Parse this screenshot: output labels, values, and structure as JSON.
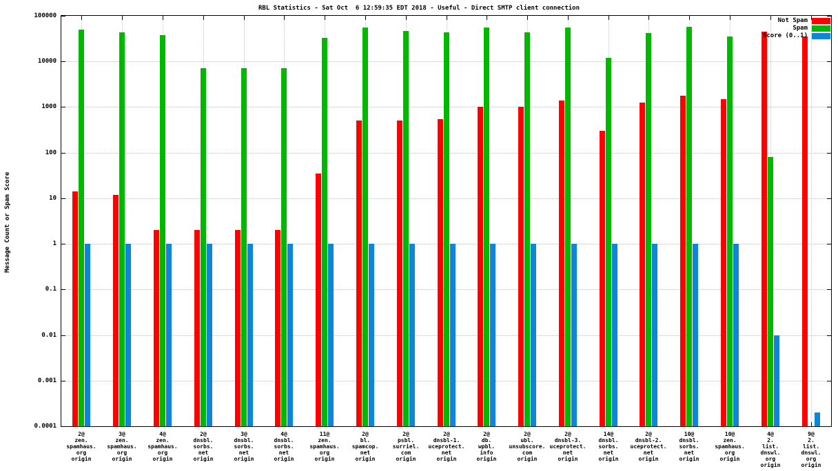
{
  "chart_data": {
    "type": "bar",
    "title": "RBL Statistics - Sat Oct  6 12:59:35 EDT 2018 - Useful - Direct SMTP client connection",
    "ylabel": "Message Count or Spam Score",
    "xlabel": "",
    "yscale": "log",
    "ylim": [
      0.0001,
      100000
    ],
    "yticks": [
      100000,
      10000,
      1000,
      100,
      10,
      1,
      0.1,
      0.01,
      0.001,
      0.0001
    ],
    "ytick_labels": [
      "100000",
      "10000",
      "1000",
      "100",
      "10",
      "1",
      "0.1",
      "0.01",
      "0.001",
      "0.0001"
    ],
    "grid": true,
    "legend_position": "top-right",
    "categories": [
      "2@\nzen.\nspamhaus.\norg\norigin",
      "3@\nzen.\nspamhaus.\norg\norigin",
      "4@\nzen.\nspamhaus.\norg\norigin",
      "2@\ndnsbl.\nsorbs.\nnet\norigin",
      "3@\ndnsbl.\nsorbs.\nnet\norigin",
      "4@\ndnsbl.\nsorbs.\nnet\norigin",
      "11@\nzen.\nspamhaus.\norg\norigin",
      "2@\nbl.\nspamcop.\nnet\norigin",
      "2@\npsbl.\nsurriel.\ncom\norigin",
      "2@\ndnsbl-1.\nuceprotect.\nnet\norigin",
      "2@\ndb.\nwpbl.\ninfo\norigin",
      "2@\nubl.\nunsubscore.\ncom\norigin",
      "2@\ndnsbl-3.\nuceprotect.\nnet\norigin",
      "14@\ndnsbl.\nsorbs.\nnet\norigin",
      "2@\ndnsbl-2.\nuceprotect.\nnet\norigin",
      "10@\ndnsbl.\nsorbs.\nnet\norigin",
      "10@\nzen.\nspamhaus.\norg\norigin",
      "4@\n2.\nlist.\ndnswl.\norg\norigin",
      "9@\n2.\nlist.\ndnswl.\norg\norigin"
    ],
    "series": [
      {
        "name": "Not Spam",
        "color": "#ff0000",
        "values": [
          14,
          12,
          2,
          2,
          2,
          2,
          35,
          500,
          500,
          550,
          1000,
          1000,
          1400,
          300,
          1250,
          1800,
          1500,
          45000,
          35000
        ]
      },
      {
        "name": "Spam",
        "color": "#00b800",
        "values": [
          50000,
          43000,
          38000,
          7000,
          7000,
          7000,
          33000,
          55000,
          47000,
          43000,
          55000,
          44000,
          55000,
          12000,
          42000,
          57000,
          35000,
          80,
          null
        ]
      },
      {
        "name": "Score (0..1)",
        "color": "#0e86d8",
        "values": [
          1,
          1,
          1,
          1,
          1,
          1,
          1,
          1,
          1,
          1,
          1,
          1,
          1,
          1,
          1,
          1,
          1,
          0.01,
          0.0002
        ]
      }
    ]
  }
}
